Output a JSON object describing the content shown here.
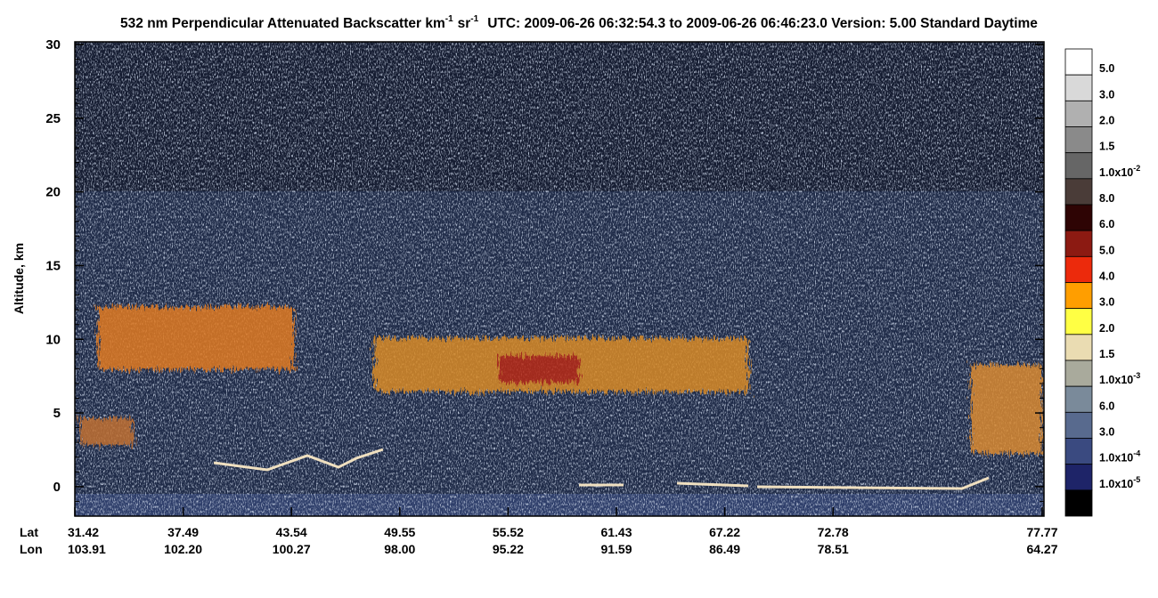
{
  "chart_data": {
    "type": "curtain",
    "title": [
      "532 nm Perpendicular Attenuated Backscatter km",
      "-1",
      "sr",
      "-1",
      "UTC: 2009-06-26 06:32:54.3 to 2009-06-26 06:46:23.0  Version: 5.00 Standard Daytime"
    ],
    "ylabel": "Altitude, km",
    "ylim": [
      -2,
      30
    ],
    "yticks": [
      0,
      5,
      10,
      15,
      20,
      25,
      30
    ],
    "row_labels": [
      "Lat",
      "Lon"
    ],
    "lat": [
      "31.42",
      "37.49",
      "43.54",
      "49.55",
      "55.52",
      "61.43",
      "67.22",
      "72.78",
      "77.77"
    ],
    "lon": [
      "103.91",
      "102.20",
      "100.27",
      "98.00",
      "95.22",
      "91.59",
      "86.49",
      "78.51",
      "64.27"
    ],
    "colorbar": {
      "colors": [
        "#ffffff",
        "#d9d9d9",
        "#b0b0b0",
        "#8a8a8a",
        "#666666",
        "#4a3c38",
        "#2e0404",
        "#8c1a12",
        "#ec2a0c",
        "#ff9e00",
        "#ffff44",
        "#eadcb2",
        "#a9aa9c",
        "#7a8a9a",
        "#586a8e",
        "#3a4a80",
        "#1e2468",
        "#000000"
      ],
      "labels": [
        "5.0",
        "3.0",
        "2.0",
        "1.5",
        {
          "text": "1.0x10",
          "sup": "-2"
        },
        "8.0",
        "6.0",
        "5.0",
        "4.0",
        "3.0",
        "2.0",
        "1.5",
        {
          "text": "1.0x10",
          "sup": "-3"
        },
        "6.0",
        "3.0",
        {
          "text": "1.0x10",
          "sup": "-4"
        },
        {
          "text": "1.0x10",
          "sup": "-5"
        }
      ]
    }
  }
}
